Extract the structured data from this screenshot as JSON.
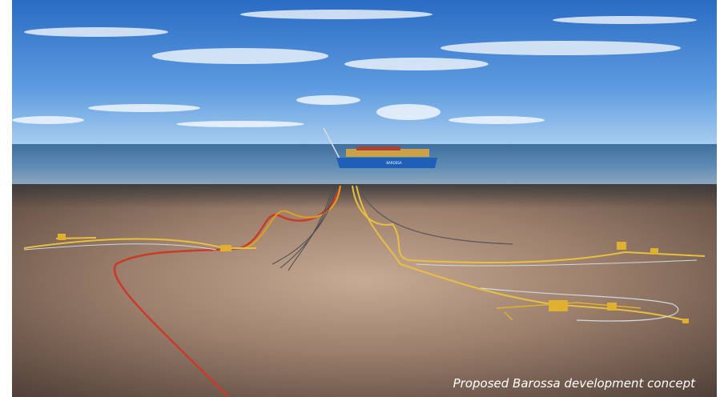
{
  "image": {
    "caption": "Proposed Barossa development concept",
    "ship_label": "BAROSSA"
  }
}
